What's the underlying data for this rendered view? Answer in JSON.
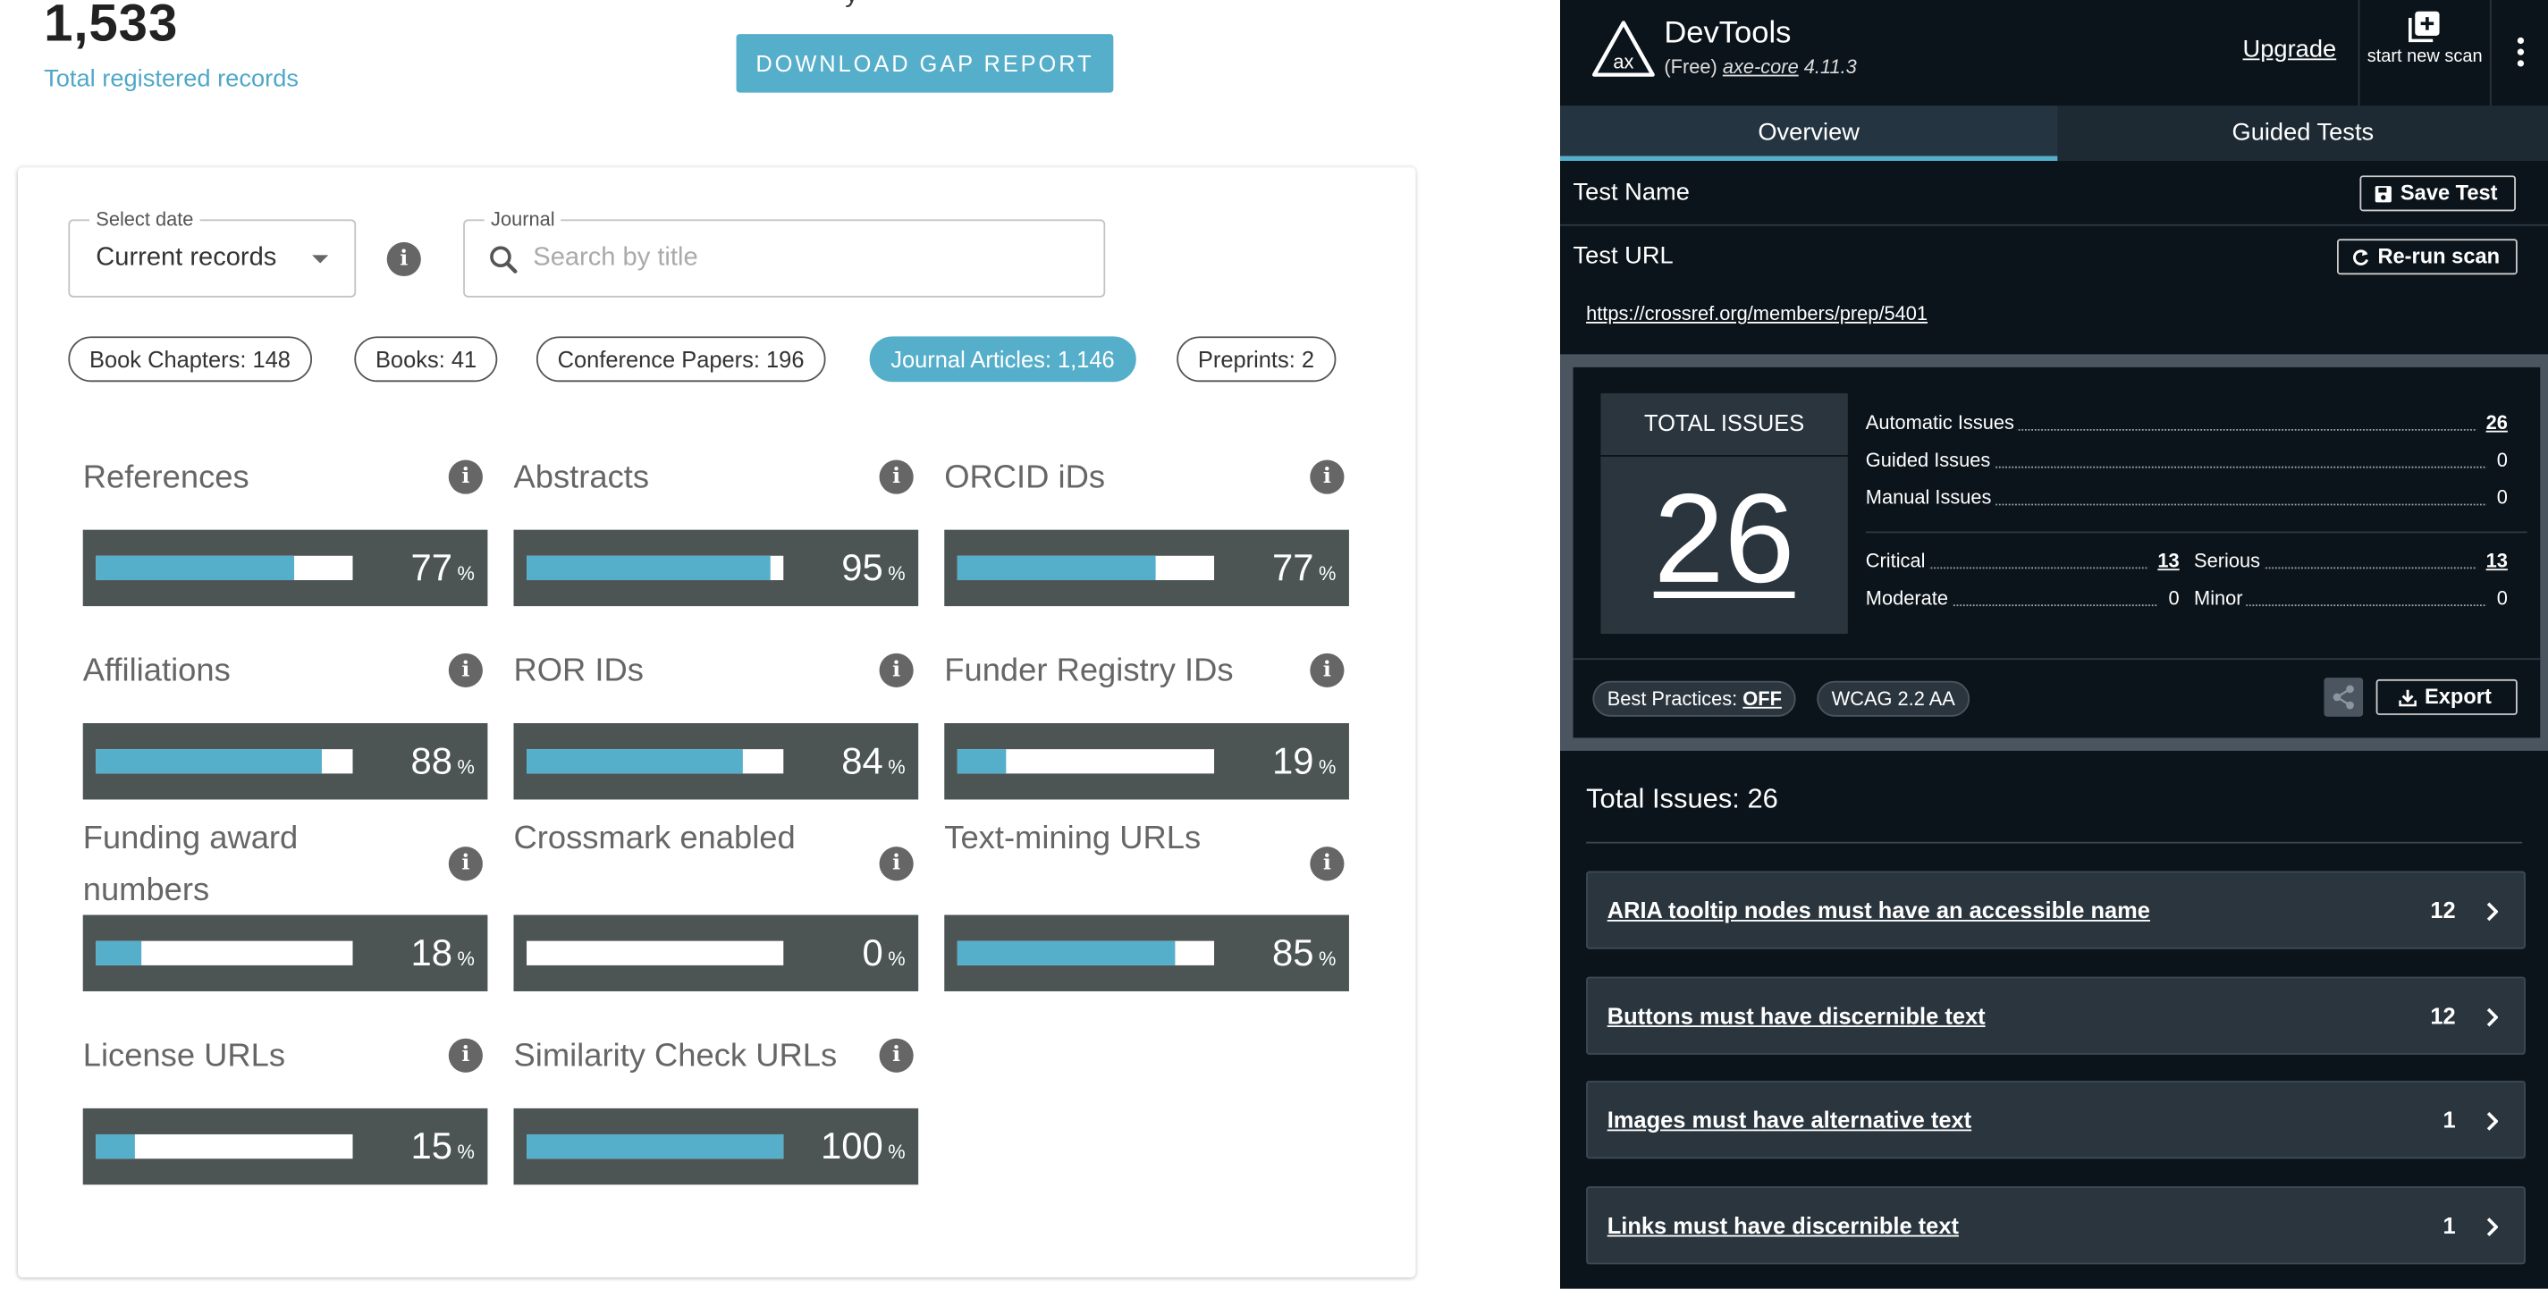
{
  "left": {
    "clipped_heading": "y",
    "total": {
      "number": "1,533",
      "label": "Total registered records"
    },
    "download_button": "DOWNLOAD GAP REPORT",
    "filters": {
      "date": {
        "label": "Select date",
        "value": "Current records"
      },
      "journal": {
        "label": "Journal",
        "placeholder": "Search by title"
      }
    },
    "pills": [
      {
        "label": "Book Chapters: 148",
        "active": false
      },
      {
        "label": "Books: 41",
        "active": false
      },
      {
        "label": "Conference Papers: 196",
        "active": false
      },
      {
        "label": "Journal Articles: 1,146",
        "active": true
      },
      {
        "label": "Preprints: 2",
        "active": false
      }
    ],
    "percent_sign": "%",
    "metrics": [
      {
        "title": "References",
        "value": 77
      },
      {
        "title": "Abstracts",
        "value": 95
      },
      {
        "title": "ORCID iDs",
        "value": 77
      },
      {
        "title": "Affiliations",
        "value": 88
      },
      {
        "title": "ROR IDs",
        "value": 84
      },
      {
        "title": "Funder Registry IDs",
        "value": 19
      },
      {
        "title": "Funding award numbers",
        "value": 18
      },
      {
        "title": "Crossmark enabled",
        "value": 0
      },
      {
        "title": "Text-mining URLs",
        "value": 85
      },
      {
        "title": "License URLs",
        "value": 15
      },
      {
        "title": "Similarity Check URLs",
        "value": 100
      }
    ]
  },
  "devtools": {
    "brand": "DevTools",
    "plan": "(Free)",
    "core_name": "axe-core",
    "core_version": "4.11.3",
    "upgrade": "Upgrade",
    "new_scan": "start new scan",
    "tabs": [
      {
        "label": "Overview",
        "active": true
      },
      {
        "label": "Guided Tests",
        "active": false
      }
    ],
    "test_name_label": "Test Name",
    "save_test": "Save Test",
    "test_url_label": "Test URL",
    "rerun": "Re-run scan",
    "url": "https://crossref.org/members/prep/5401",
    "total_issues_label": "TOTAL ISSUES",
    "total_issues": "26",
    "issue_types": [
      {
        "name": "Automatic Issues",
        "value": "26",
        "link": true
      },
      {
        "name": "Guided Issues",
        "value": "0",
        "link": false
      },
      {
        "name": "Manual Issues",
        "value": "0",
        "link": false
      }
    ],
    "severity": [
      {
        "name": "Critical",
        "value": "13",
        "link": true
      },
      {
        "name": "Serious",
        "value": "13",
        "link": true
      },
      {
        "name": "Moderate",
        "value": "0",
        "link": false
      },
      {
        "name": "Minor",
        "value": "0",
        "link": false
      }
    ],
    "best_practices_label": "Best Practices:",
    "best_practices_value": "OFF",
    "standard": "WCAG 2.2 AA",
    "export": "Export",
    "issues_heading": "Total Issues: 26",
    "issues": [
      {
        "title": "ARIA tooltip nodes must have an accessible name",
        "count": "12"
      },
      {
        "title": "Buttons must have discernible text",
        "count": "12"
      },
      {
        "title": "Images must have alternative text",
        "count": "1"
      },
      {
        "title": "Links must have discernible text",
        "count": "1"
      }
    ],
    "colors": {
      "accent": "#56afca",
      "panel_bg": "#0b141b",
      "card_bg": "#2a353e"
    }
  }
}
